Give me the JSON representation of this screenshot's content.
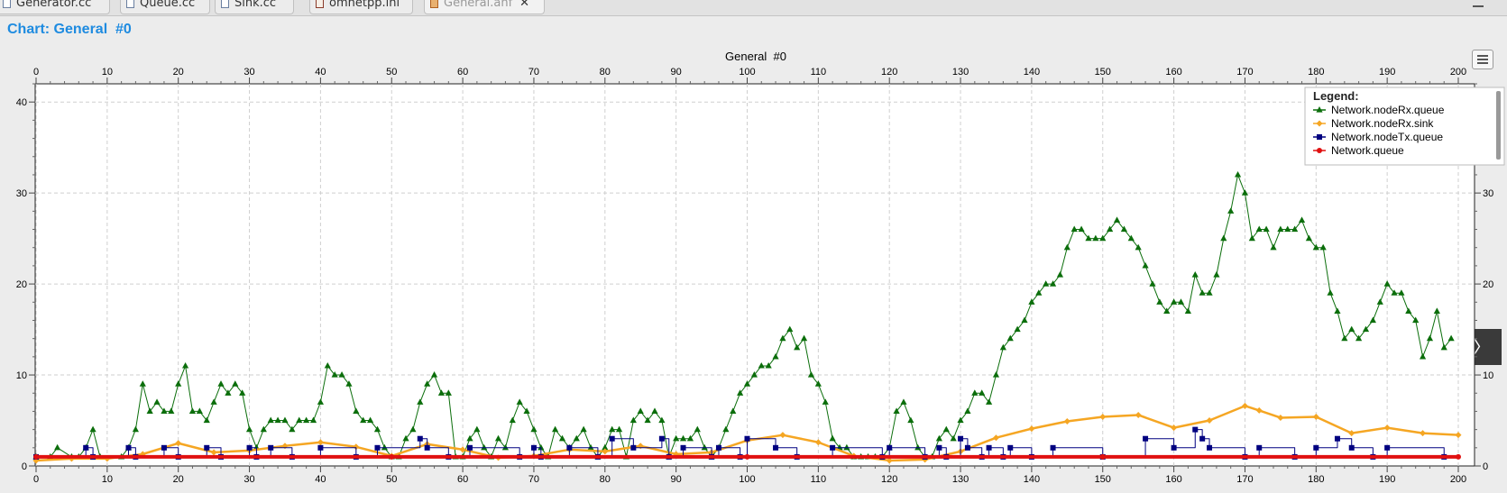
{
  "tabs": [
    {
      "label": "Generator.cc",
      "icon": "cc-file-icon"
    },
    {
      "label": "Queue.cc",
      "icon": "cc-file-icon"
    },
    {
      "label": "Sink.cc",
      "icon": "cc-file-icon"
    },
    {
      "label": "omnetpp.ini",
      "icon": "ini-file-icon"
    },
    {
      "label": "General.anf",
      "icon": "anf-file-icon",
      "active": true,
      "close": "✕"
    }
  ],
  "heading": "Chart: General  #0",
  "expand_glyph": "〉",
  "colors": {
    "heading": "#1e8be0",
    "grid": "#cfcfcf"
  },
  "chart_data": {
    "type": "line",
    "title": "General  #0",
    "xlim": [
      0,
      200
    ],
    "ylim": [
      0,
      42
    ],
    "xticks": [
      0,
      10,
      20,
      30,
      40,
      50,
      60,
      70,
      80,
      90,
      100,
      110,
      120,
      130,
      140,
      150,
      160,
      170,
      180,
      190,
      200
    ],
    "yticks": [
      0,
      10,
      20,
      30,
      40
    ],
    "grid": true,
    "legend_title": "Legend:",
    "legend_position": "top-right",
    "series": [
      {
        "name": "Network.nodeRx.queue",
        "color": "#0b6e0b",
        "marker": "triangle",
        "x": [
          0,
          2,
          3,
          5,
          6,
          7,
          8,
          9,
          12,
          13,
          14,
          15,
          16,
          17,
          18,
          19,
          20,
          21,
          22,
          23,
          24,
          25,
          26,
          27,
          28,
          29,
          30,
          31,
          32,
          33,
          34,
          35,
          36,
          37,
          38,
          39,
          40,
          41,
          42,
          43,
          44,
          45,
          46,
          47,
          48,
          49,
          50,
          51,
          52,
          53,
          54,
          55,
          56,
          57,
          58,
          59,
          60,
          61,
          62,
          63,
          64,
          65,
          66,
          67,
          68,
          69,
          70,
          71,
          72,
          73,
          74,
          75,
          76,
          77,
          78,
          79,
          80,
          81,
          82,
          83,
          84,
          85,
          86,
          87,
          88,
          89,
          90,
          91,
          92,
          93,
          94,
          95,
          96,
          97,
          98,
          99,
          100,
          101,
          102,
          103,
          104,
          105,
          106,
          107,
          108,
          109,
          110,
          111,
          112,
          113,
          114,
          115,
          116,
          117,
          118,
          119,
          120,
          121,
          122,
          123,
          124,
          125,
          126,
          127,
          128,
          129,
          130,
          131,
          132,
          133,
          134,
          135,
          136,
          137,
          138,
          139,
          140,
          141,
          142,
          143,
          144,
          145,
          146,
          147,
          148,
          149,
          150,
          151,
          152,
          153,
          154,
          155,
          156,
          157,
          158,
          159,
          160,
          161,
          162,
          163,
          164,
          165,
          166,
          167,
          168,
          169,
          170,
          171,
          172,
          173,
          174,
          175,
          176,
          177,
          178,
          179,
          180,
          181,
          182,
          183,
          184,
          185,
          186,
          187,
          188,
          189,
          190,
          191,
          192,
          193,
          194,
          195,
          196,
          197,
          198,
          199
        ],
        "y": [
          1,
          1,
          2,
          1,
          1,
          2,
          4,
          1,
          1,
          2,
          4,
          9,
          6,
          7,
          6,
          6,
          9,
          11,
          6,
          6,
          5,
          7,
          9,
          8,
          9,
          8,
          4,
          2,
          4,
          5,
          5,
          5,
          4,
          5,
          5,
          5,
          7,
          11,
          10,
          10,
          9,
          6,
          5,
          5,
          4,
          2,
          1,
          1,
          3,
          4,
          7,
          9,
          10,
          8,
          8,
          1,
          1,
          3,
          4,
          2,
          1,
          3,
          2,
          5,
          7,
          6,
          4,
          2,
          1,
          4,
          3,
          2,
          3,
          4,
          2,
          1,
          2,
          4,
          4,
          1,
          5,
          6,
          5,
          6,
          5,
          1,
          3,
          3,
          3,
          4,
          2,
          1,
          2,
          4,
          6,
          8,
          9,
          10,
          11,
          11,
          12,
          14,
          15,
          13,
          14,
          10,
          9,
          7,
          3,
          2,
          2,
          1,
          1,
          1,
          1,
          1,
          2,
          6,
          7,
          5,
          2,
          1,
          1,
          3,
          4,
          3,
          5,
          6,
          8,
          8,
          7,
          10,
          13,
          14,
          15,
          16,
          18,
          19,
          20,
          20,
          21,
          24,
          26,
          26,
          25,
          25,
          25,
          26,
          27,
          26,
          25,
          24,
          22,
          20,
          18,
          17,
          18,
          18,
          17,
          21,
          19,
          19,
          21,
          25,
          28,
          32,
          30,
          25,
          26,
          26,
          24,
          26,
          26,
          26,
          27,
          25,
          24,
          24,
          19,
          17,
          14,
          15,
          14,
          15,
          16,
          18,
          20,
          19,
          19,
          17,
          16,
          12,
          14,
          17,
          13,
          14
        ]
      },
      {
        "name": "Network.nodeRx.sink",
        "color": "#f5a623",
        "marker": "diamond",
        "x": [
          0,
          5,
          10,
          15,
          20,
          25,
          30,
          35,
          40,
          45,
          50,
          55,
          60,
          65,
          70,
          75,
          80,
          85,
          90,
          95,
          100,
          105,
          110,
          115,
          120,
          125,
          130,
          135,
          140,
          145,
          150,
          155,
          160,
          165,
          170,
          172,
          175,
          180,
          185,
          190,
          195,
          200
        ],
        "y": [
          0.6,
          0.8,
          0.8,
          1.3,
          2.5,
          1.5,
          1.7,
          2.2,
          2.6,
          2.1,
          1.1,
          2.4,
          1.8,
          0.9,
          1.1,
          1.8,
          1.6,
          2.2,
          1.3,
          1.5,
          2.8,
          3.4,
          2.6,
          1.1,
          0.6,
          0.7,
          1.6,
          3.1,
          4.1,
          4.9,
          5.4,
          5.6,
          4.2,
          5.0,
          6.6,
          6.1,
          5.3,
          5.4,
          3.6,
          4.2,
          3.6,
          3.4
        ]
      },
      {
        "name": "Network.nodeTx.queue",
        "color": "#000080",
        "marker": "square",
        "x": [
          0,
          7,
          8,
          13,
          14,
          18,
          20,
          24,
          26,
          30,
          31,
          33,
          36,
          40,
          45,
          48,
          54,
          55,
          58,
          61,
          68,
          70,
          71,
          75,
          79,
          81,
          84,
          88,
          89,
          91,
          95,
          96,
          99,
          100,
          104,
          107,
          112,
          119,
          120,
          125,
          127,
          128,
          130,
          131,
          133,
          134,
          136,
          137,
          140,
          143,
          150,
          156,
          160,
          163,
          164,
          165,
          170,
          172,
          177,
          180,
          183,
          185,
          188,
          190,
          198
        ],
        "y": [
          1,
          2,
          1,
          2,
          1,
          2,
          1,
          2,
          1,
          2,
          1,
          2,
          1,
          2,
          1,
          2,
          3,
          2,
          1,
          2,
          1,
          2,
          1,
          2,
          1,
          3,
          2,
          3,
          1,
          2,
          1,
          2,
          1,
          3,
          2,
          1,
          2,
          1,
          2,
          1,
          2,
          1,
          3,
          2,
          1,
          2,
          1,
          2,
          1,
          2,
          1,
          3,
          2,
          4,
          3,
          2,
          1,
          2,
          1,
          2,
          3,
          2,
          1,
          2,
          1
        ]
      },
      {
        "name": "Network.queue",
        "color": "#e01010",
        "marker": "circle",
        "x": [
          0,
          50,
          100,
          150,
          200
        ],
        "y": [
          1,
          1,
          1,
          1,
          1
        ]
      }
    ]
  }
}
